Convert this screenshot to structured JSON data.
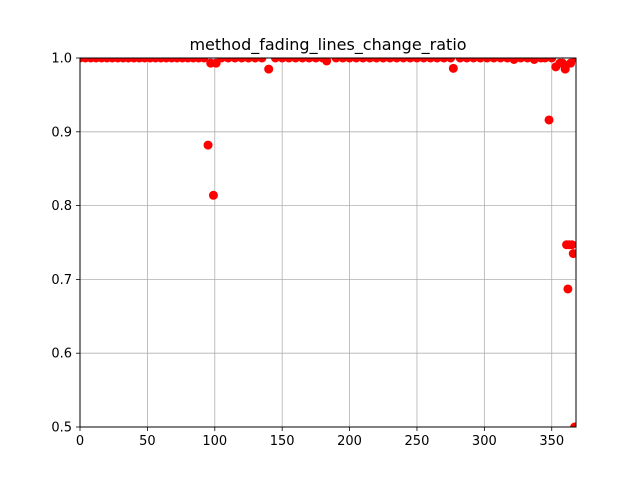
{
  "chart_data": {
    "type": "scatter",
    "title": "method_fading_lines_change_ratio",
    "xlabel": "",
    "ylabel": "",
    "xlim": [
      0,
      368
    ],
    "ylim": [
      0.5,
      1.0
    ],
    "x_ticks": [
      0,
      50,
      100,
      150,
      200,
      250,
      300,
      350
    ],
    "y_ticks": [
      0.5,
      0.6,
      0.7,
      0.8,
      0.9,
      1.0
    ],
    "x_tick_labels": [
      "0",
      "50",
      "100",
      "150",
      "200",
      "250",
      "300",
      "350"
    ],
    "y_tick_labels": [
      "0.5",
      "0.6",
      "0.7",
      "0.8",
      "0.9",
      "1.0"
    ],
    "grid": true,
    "marker_color": "#ff0000",
    "series": [
      {
        "x": [
          0,
          4,
          8,
          12,
          16,
          20,
          24,
          28,
          32,
          36,
          40,
          44,
          48,
          52,
          56,
          60,
          64,
          68,
          72,
          76,
          80,
          84,
          88,
          92,
          95,
          97,
          99,
          101,
          105,
          110,
          115,
          120,
          125,
          130,
          135,
          140,
          145,
          150,
          155,
          160,
          165,
          170,
          175,
          180,
          183,
          190,
          195,
          200,
          205,
          210,
          215,
          220,
          225,
          230,
          235,
          240,
          245,
          250,
          255,
          260,
          265,
          270,
          275,
          277,
          282,
          287,
          292,
          297,
          302,
          307,
          312,
          317,
          322,
          327,
          332,
          337,
          342,
          345,
          348,
          350,
          353,
          356,
          358,
          360,
          361,
          362,
          363,
          364,
          365,
          366,
          367,
          368
        ],
        "y": [
          1.0,
          1.0,
          1.0,
          1.0,
          1.0,
          1.0,
          1.0,
          1.0,
          1.0,
          1.0,
          1.0,
          1.0,
          1.0,
          1.0,
          1.0,
          1.0,
          1.0,
          1.0,
          1.0,
          1.0,
          1.0,
          1.0,
          1.0,
          1.0,
          0.882,
          0.993,
          0.814,
          0.993,
          1.0,
          1.0,
          1.0,
          1.0,
          1.0,
          1.0,
          1.0,
          0.985,
          1.0,
          1.0,
          1.0,
          1.0,
          1.0,
          1.0,
          1.0,
          1.0,
          0.996,
          1.0,
          1.0,
          1.0,
          1.0,
          1.0,
          1.0,
          1.0,
          1.0,
          1.0,
          1.0,
          1.0,
          1.0,
          1.0,
          1.0,
          1.0,
          1.0,
          1.0,
          1.0,
          0.986,
          1.0,
          1.0,
          1.0,
          1.0,
          1.0,
          1.0,
          1.0,
          1.0,
          0.998,
          1.0,
          1.0,
          0.998,
          1.0,
          1.0,
          0.916,
          1.0,
          0.988,
          0.993,
          0.993,
          0.985,
          0.747,
          0.687,
          0.747,
          0.993,
          0.747,
          0.735,
          0.5,
          1.0
        ]
      }
    ]
  }
}
